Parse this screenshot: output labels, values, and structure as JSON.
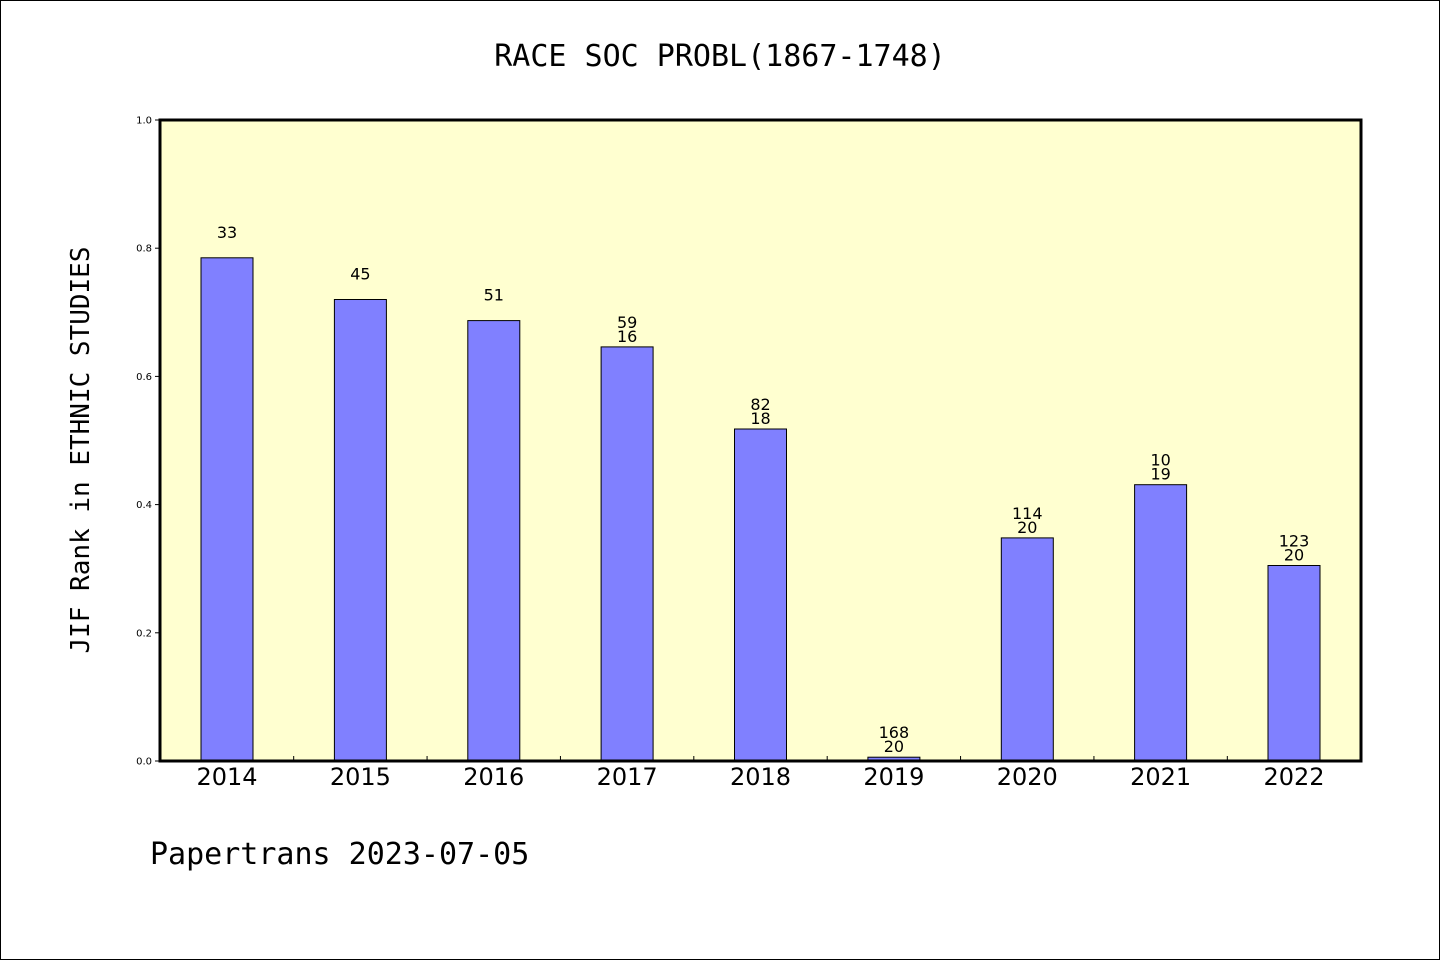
{
  "chart_data": {
    "type": "bar",
    "title": "RACE SOC PROBL(1867-1748)",
    "xlabel": "",
    "ylabel": "JIF Rank in ETHNIC STUDIES",
    "ylim": [
      0,
      1.0
    ],
    "yticks": [
      "0.0",
      "0.2",
      "0.4",
      "0.6",
      "0.8",
      "1.0"
    ],
    "categories": [
      "2014",
      "2015",
      "2016",
      "2017",
      "2018",
      "2019",
      "2020",
      "2021",
      "2022"
    ],
    "values": [
      0.785,
      0.72,
      0.687,
      0.646,
      0.518,
      0.006,
      0.348,
      0.431,
      0.305
    ],
    "labels_top": [
      "33",
      "45",
      "51",
      "59",
      "82",
      "168",
      "114",
      "10",
      "123"
    ],
    "labels_bottom": [
      "",
      "",
      "",
      "16",
      "18",
      "20",
      "20",
      "19",
      "20"
    ],
    "bar_color": "#8080ff",
    "plot_background": "#ffffd0",
    "grid": false
  },
  "footer": "Papertrans 2023-07-05"
}
